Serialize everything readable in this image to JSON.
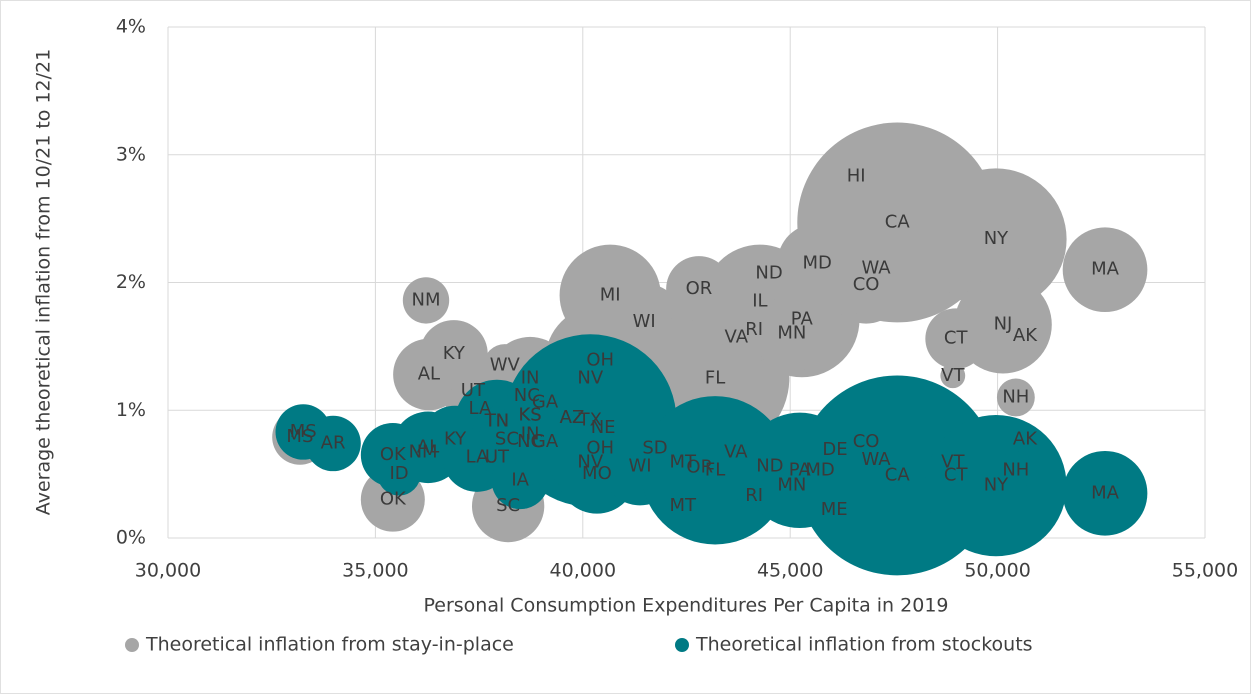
{
  "chart_data": {
    "type": "bubble",
    "x_label": "Personal Consumption Expenditures Per Capita in 2019",
    "y_label": "Average theoretical inflation from 10/21 to 12/21",
    "xlim": [
      30000,
      55000
    ],
    "xticks": [
      {
        "value": 30000,
        "label": "30,000"
      },
      {
        "value": 35000,
        "label": "35,000"
      },
      {
        "value": 40000,
        "label": "40,000"
      },
      {
        "value": 45000,
        "label": "45,000"
      },
      {
        "value": 50000,
        "label": "50,000"
      },
      {
        "value": 55000,
        "label": "55,000"
      }
    ],
    "ylim": [
      0,
      4
    ],
    "yticks": [
      {
        "value": 0,
        "label": "0%"
      },
      {
        "value": 1,
        "label": "1%"
      },
      {
        "value": 2,
        "label": "2%"
      },
      {
        "value": 3,
        "label": "3%"
      },
      {
        "value": 4,
        "label": "4%"
      }
    ],
    "grid": true,
    "legend": "bottom",
    "series": [
      {
        "name": "Theoretical inflation from stay-in-place",
        "color": "#a6a6a6",
        "labels": [
          "MS",
          "NM",
          "OK",
          "KY",
          "AL",
          "UT",
          "LA",
          "WV",
          "IN",
          "NC",
          "GA",
          "SC",
          "KS",
          "AZ",
          "TN",
          "NV",
          "OH",
          "MI",
          "WI",
          "OR",
          "FL",
          "VA",
          "IL",
          "ND",
          "RI",
          "MD",
          "PA",
          "MN",
          "WA",
          "CO",
          "HI",
          "CA",
          "NY",
          "MA",
          "CT",
          "NJ",
          "AK",
          "VT",
          "NH",
          "MT"
        ],
        "x": [
          33180,
          36220,
          35420,
          36890,
          36290,
          37350,
          37520,
          38120,
          38730,
          38650,
          39090,
          38200,
          38730,
          39740,
          37930,
          40180,
          40420,
          40660,
          41480,
          42800,
          43190,
          43700,
          44270,
          44490,
          44130,
          45650,
          45280,
          45040,
          47070,
          46830,
          46590,
          47580,
          49960,
          52590,
          48990,
          50130,
          50660,
          48920,
          50440,
          42410
        ],
        "y": [
          0.79,
          1.86,
          0.3,
          1.44,
          1.28,
          1.15,
          1.01,
          1.35,
          1.25,
          1.11,
          1.06,
          0.25,
          0.96,
          0.94,
          0.91,
          1.25,
          1.39,
          1.9,
          1.69,
          1.95,
          1.25,
          1.57,
          1.85,
          2.07,
          1.63,
          2.15,
          1.71,
          1.6,
          2.11,
          1.98,
          2.83,
          2.47,
          2.34,
          2.1,
          1.56,
          1.67,
          1.58,
          1.27,
          1.1,
          0.25
        ],
        "sizes": [
          3,
          2.1,
          4,
          4.5,
          5,
          3.2,
          4.6,
          1.8,
          6.7,
          10.5,
          10.6,
          5.1,
          2.9,
          7.2,
          6.9,
          3.1,
          11.8,
          10,
          5.9,
          4.2,
          21.5,
          8.6,
          12.7,
          0.8,
          1.1,
          6.2,
          13,
          5.7,
          7.7,
          5.8,
          1.4,
          39,
          19.5,
          7,
          3.6,
          9.3,
          0.7,
          0.6,
          1.4,
          1.1
        ]
      },
      {
        "name": "Theoretical inflation from stockouts",
        "color": "#007a84",
        "labels": [
          "MS",
          "AR",
          "OK",
          "NM",
          "ID",
          "AL",
          "KY",
          "LA",
          "UT",
          "TN",
          "SC",
          "NC",
          "KS",
          "IN",
          "GA",
          "IA",
          "AZ",
          "TX",
          "NE",
          "OH",
          "MO",
          "NV",
          "WI",
          "SD",
          "MT",
          "OR",
          "FL",
          "VA",
          "ND",
          "RI",
          "MN",
          "PA",
          "MD",
          "DE",
          "CO",
          "WA",
          "ME",
          "CA",
          "VT",
          "CT",
          "NY",
          "NH",
          "AK",
          "MA"
        ],
        "x": [
          33260,
          33980,
          35420,
          36150,
          35570,
          36270,
          36920,
          37450,
          37930,
          37930,
          38170,
          38730,
          38730,
          38730,
          39090,
          38490,
          39740,
          40180,
          40490,
          40420,
          40340,
          40180,
          41380,
          41740,
          42410,
          42820,
          43190,
          43690,
          44510,
          44130,
          45040,
          45230,
          45720,
          46080,
          46830,
          47070,
          46060,
          47580,
          48920,
          48990,
          49960,
          50440,
          50660,
          52590
        ],
        "y": [
          0.83,
          0.74,
          0.65,
          0.67,
          0.5,
          0.71,
          0.77,
          0.63,
          0.63,
          0.91,
          0.77,
          0.75,
          0.96,
          0.81,
          0.75,
          0.45,
          0.94,
          0.92,
          0.86,
          0.7,
          0.5,
          0.59,
          0.56,
          0.7,
          0.59,
          0.55,
          0.53,
          0.67,
          0.56,
          0.33,
          0.41,
          0.53,
          0.53,
          0.69,
          0.75,
          0.61,
          0.22,
          0.49,
          0.59,
          0.49,
          0.41,
          0.53,
          0.77,
          0.35
        ],
        "sizes": [
          3,
          3,
          4,
          2.1,
          1.8,
          5,
          4.5,
          4.6,
          3.2,
          6.9,
          5.1,
          10.5,
          2.9,
          6.7,
          10.6,
          3.2,
          7.2,
          29,
          1.9,
          11.8,
          6.1,
          3.1,
          5.9,
          0.9,
          1.1,
          4.2,
          21.5,
          8.6,
          0.8,
          1.1,
          5.7,
          13,
          6.2,
          1,
          5.8,
          7.7,
          1.4,
          39,
          0.6,
          3.6,
          19.5,
          1.4,
          0.7,
          7
        ]
      }
    ]
  }
}
